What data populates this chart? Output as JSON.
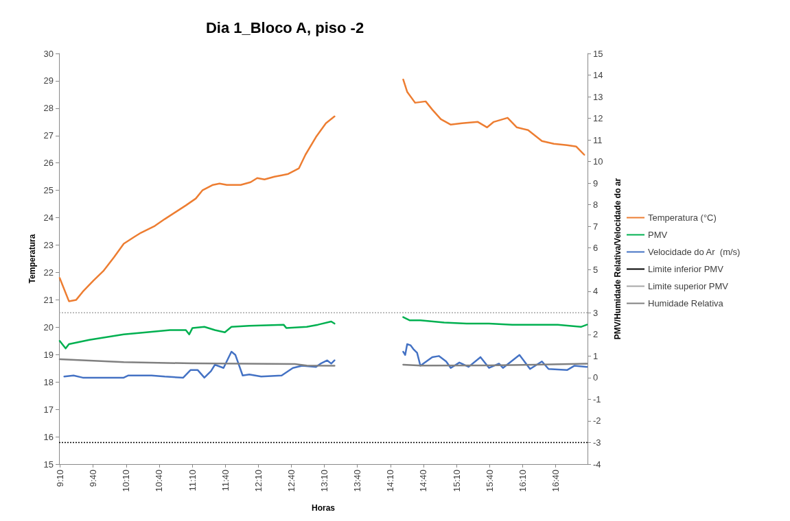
{
  "chart_data": {
    "type": "line",
    "title": "Dia 1_Bloco A, piso -2",
    "xlabel": "Horas",
    "ylabel": "Temperatura",
    "y2label": "PMV/Humidade Relativa/Velocidade do ar",
    "xlim": [
      9.15,
      17.15
    ],
    "xticks": [
      {
        "value": 9.1667,
        "label": "9:10"
      },
      {
        "value": 9.6667,
        "label": "9:40"
      },
      {
        "value": 10.1667,
        "label": "10:10"
      },
      {
        "value": 10.6667,
        "label": "10:40"
      },
      {
        "value": 11.1667,
        "label": "11:10"
      },
      {
        "value": 11.6667,
        "label": "11:40"
      },
      {
        "value": 12.1667,
        "label": "12:10"
      },
      {
        "value": 12.6667,
        "label": "12:40"
      },
      {
        "value": 13.1667,
        "label": "13:10"
      },
      {
        "value": 13.6667,
        "label": "13:40"
      },
      {
        "value": 14.1667,
        "label": "14:10"
      },
      {
        "value": 14.6667,
        "label": "14:40"
      },
      {
        "value": 15.1667,
        "label": "15:10"
      },
      {
        "value": 15.6667,
        "label": "15:40"
      },
      {
        "value": 16.1667,
        "label": "16:10"
      },
      {
        "value": 16.6667,
        "label": "16:40"
      }
    ],
    "ylim": [
      15,
      30
    ],
    "yticks": [
      15,
      16,
      17,
      18,
      19,
      20,
      21,
      22,
      23,
      24,
      25,
      26,
      27,
      28,
      29,
      30
    ],
    "y2lim": [
      -4,
      15
    ],
    "y2ticks": [
      -4,
      -3,
      -2,
      -1,
      0,
      1,
      2,
      3,
      4,
      5,
      6,
      7,
      8,
      9,
      10,
      11,
      12,
      13,
      14,
      15
    ],
    "legend": "right",
    "marker": "none",
    "series": [
      {
        "name": "Temperatura (°C)",
        "color": "#ed7d31",
        "x": [
          9.16,
          9.3,
          9.41,
          9.51,
          9.67,
          9.82,
          9.98,
          10.13,
          10.29,
          10.39,
          10.6,
          10.75,
          10.91,
          11.07,
          11.22,
          11.32,
          11.48,
          11.58,
          11.69,
          11.9,
          12.05,
          12.15,
          12.26,
          12.41,
          12.52,
          12.62,
          12.78,
          12.88,
          13.04,
          13.19,
          13.32,
          13.8,
          14.36,
          14.42,
          14.54,
          14.7,
          14.8,
          14.93,
          15.08,
          15.25,
          15.49,
          15.63,
          15.73,
          15.94,
          16.08,
          16.25,
          16.46,
          16.64,
          16.84,
          16.98,
          17.1
        ],
        "values": [
          21.8,
          20.95,
          21.0,
          21.3,
          21.7,
          22.05,
          22.55,
          23.05,
          23.3,
          23.45,
          23.7,
          23.95,
          24.2,
          24.45,
          24.7,
          25.0,
          25.2,
          25.25,
          25.2,
          25.2,
          25.3,
          25.45,
          25.4,
          25.5,
          25.55,
          25.6,
          25.8,
          26.3,
          26.95,
          27.45,
          27.7,
          null,
          29.05,
          28.6,
          28.2,
          28.25,
          27.95,
          27.6,
          27.4,
          27.45,
          27.5,
          27.3,
          27.5,
          27.65,
          27.3,
          27.2,
          26.8,
          26.7,
          26.65,
          26.6,
          26.3
        ]
      },
      {
        "name": "PMV",
        "color": "#00b050",
        "axis": "y2",
        "x": [
          9.16,
          9.25,
          9.3,
          9.61,
          10.13,
          10.47,
          10.83,
          11.07,
          11.12,
          11.17,
          11.35,
          11.51,
          11.66,
          11.76,
          12.03,
          12.55,
          12.59,
          12.9,
          13.07,
          13.27,
          13.32,
          13.8,
          14.36,
          14.46,
          14.62,
          14.98,
          15.32,
          15.66,
          16.01,
          16.36,
          16.7,
          17.05,
          17.14
        ],
        "values": [
          1.7,
          1.35,
          1.55,
          1.75,
          2.0,
          2.1,
          2.2,
          2.2,
          2.0,
          2.3,
          2.35,
          2.2,
          2.1,
          2.35,
          2.4,
          2.45,
          2.3,
          2.35,
          2.45,
          2.6,
          2.5,
          null,
          2.8,
          2.65,
          2.65,
          2.55,
          2.5,
          2.5,
          2.45,
          2.45,
          2.45,
          2.35,
          2.45
        ]
      },
      {
        "name": "Velocidade do Ar  (m/s)",
        "color": "#4472c4",
        "axis": "y2",
        "x": [
          9.23,
          9.37,
          9.51,
          10.13,
          10.2,
          10.55,
          10.75,
          11.03,
          11.14,
          11.25,
          11.35,
          11.45,
          11.51,
          11.64,
          11.76,
          11.82,
          11.93,
          12.03,
          12.21,
          12.52,
          12.69,
          12.83,
          13.04,
          13.11,
          13.21,
          13.27,
          13.32,
          13.8,
          14.36,
          14.39,
          14.42,
          14.47,
          14.52,
          14.57,
          14.62,
          14.8,
          14.9,
          15.01,
          15.08,
          15.21,
          15.35,
          15.53,
          15.66,
          15.81,
          15.87,
          16.12,
          16.28,
          16.46,
          16.56,
          16.84,
          16.95,
          17.14
        ],
        "values": [
          0.05,
          0.1,
          0.0,
          0.0,
          0.1,
          0.1,
          0.05,
          0.0,
          0.35,
          0.35,
          0.0,
          0.3,
          0.6,
          0.45,
          1.2,
          1.05,
          0.1,
          0.15,
          0.05,
          0.1,
          0.45,
          0.55,
          0.5,
          0.65,
          0.8,
          0.65,
          0.8,
          null,
          1.2,
          1.05,
          1.55,
          1.5,
          1.3,
          1.15,
          0.55,
          0.95,
          1.0,
          0.75,
          0.45,
          0.7,
          0.5,
          0.95,
          0.45,
          0.65,
          0.45,
          1.05,
          0.4,
          0.75,
          0.4,
          0.35,
          0.55,
          0.5
        ]
      },
      {
        "name": "Limite inferior PMV",
        "color": "#000000",
        "axis": "y2",
        "line_style": "dotted",
        "x": [
          9.15,
          17.15
        ],
        "values": [
          -3,
          -3
        ]
      },
      {
        "name": "Limite superior PMV",
        "color": "#a6a6a6",
        "axis": "y2",
        "line_style": "dotted",
        "x": [
          9.15,
          17.15
        ],
        "values": [
          3,
          3
        ]
      },
      {
        "name": "Humidade Relativa",
        "color": "#808080",
        "axis": "y2",
        "x": [
          9.16,
          10.13,
          11.17,
          12.72,
          12.9,
          13.32,
          13.8,
          14.36,
          14.62,
          15.66,
          16.36,
          17.14
        ],
        "values": [
          0.85,
          0.72,
          0.66,
          0.63,
          0.56,
          0.55,
          null,
          0.6,
          0.56,
          0.57,
          0.6,
          0.65
        ]
      }
    ]
  }
}
